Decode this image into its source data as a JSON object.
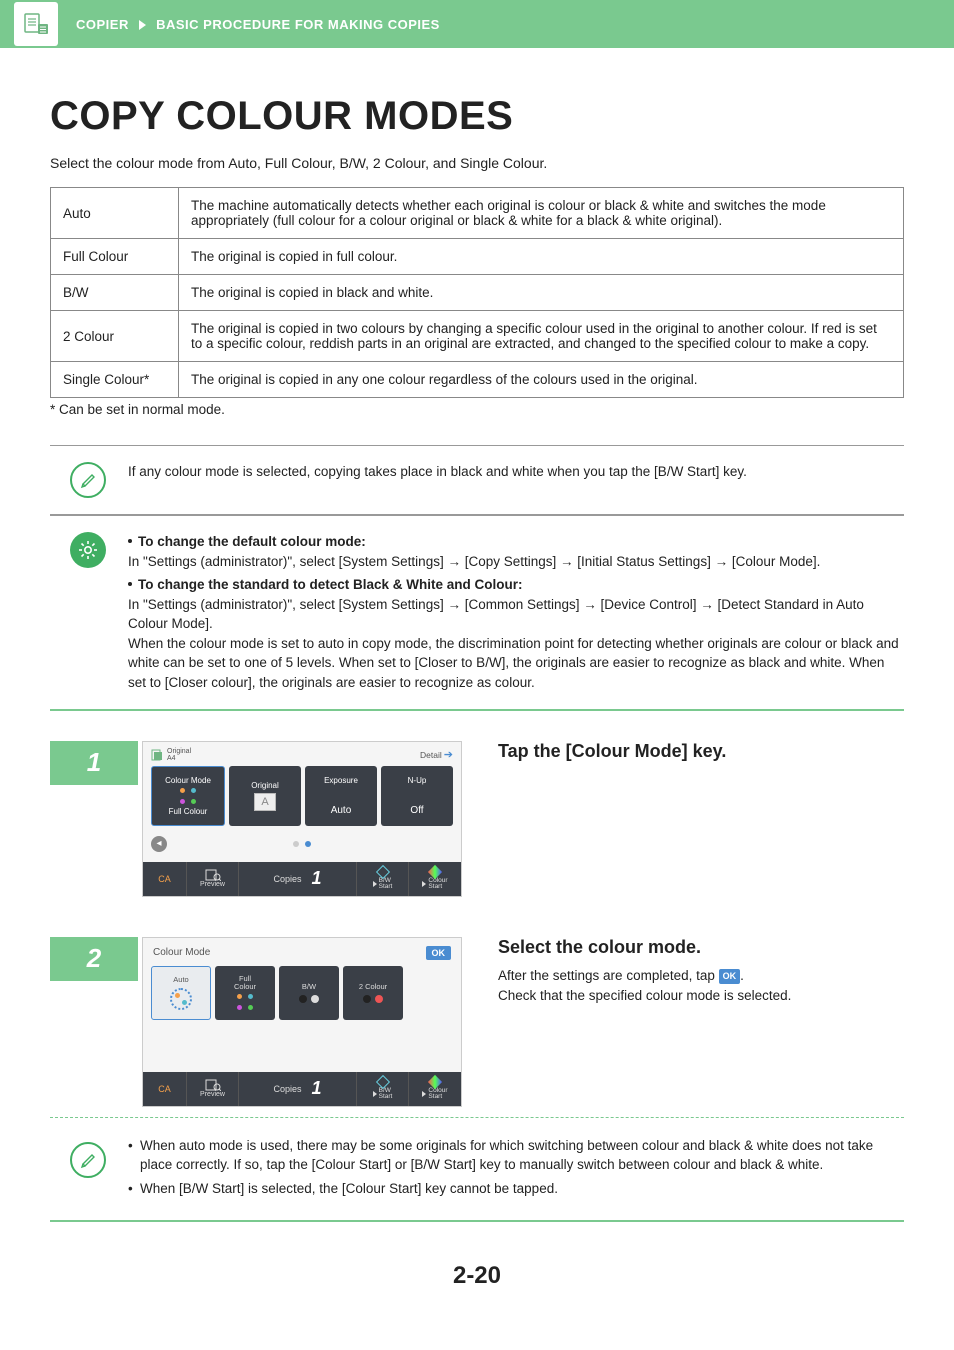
{
  "header": {
    "breadcrumb_1": "COPIER",
    "breadcrumb_2": "BASIC PROCEDURE FOR MAKING COPIES"
  },
  "title": "COPY COLOUR MODES",
  "intro": "Select the colour mode from Auto, Full Colour, B/W, 2 Colour, and Single Colour.",
  "table": {
    "rows": [
      {
        "label": "Auto",
        "desc": "The machine automatically detects whether each original is colour or black & white and switches the mode appropriately (full colour for a colour original or black & white for a black & white original)."
      },
      {
        "label": "Full Colour",
        "desc": "The original is copied in full colour."
      },
      {
        "label": "B/W",
        "desc": "The original is copied in black and white."
      },
      {
        "label": "2 Colour",
        "desc": "The original is copied in two colours by changing a specific colour used in the original to another colour. If red is set to a specific colour, reddish parts in an original are extracted, and changed to the specified colour to make a copy."
      },
      {
        "label": "Single Colour*",
        "desc": "The original is copied in any one colour regardless of the colours used in the original."
      }
    ]
  },
  "footnote": "*  Can be set in normal mode.",
  "info1": "If any colour mode is selected, copying takes place in black and white when you tap the [B/W Start] key.",
  "info2": {
    "h1": "To change the default colour mode:",
    "t1": "In \"Settings (administrator)\", select [System Settings] → [Copy Settings] → [Initial Status Settings] → [Colour Mode].",
    "h2": "To change the standard to detect Black & White and Colour:",
    "t2": "In \"Settings (administrator)\", select [System Settings] → [Common Settings] → [Device Control] → [Detect Standard in Auto Colour Mode].",
    "t3": "When the colour mode is set to auto in copy mode, the discrimination point for detecting whether originals are colour or black and white can be set to one of 5 levels. When set to [Closer to B/W], the originals are easier to recognize as black and white. When set to [Closer colour], the originals are easier to recognize as colour."
  },
  "steps": {
    "s1": {
      "num": "1",
      "title": "Tap the [Colour Mode] key.",
      "ui": {
        "original_label": "Original",
        "original_val": "A4",
        "detail": "Detail",
        "tiles": [
          {
            "top": "Colour Mode",
            "bottom": "Full Colour"
          },
          {
            "top": "Original",
            "bottom": ""
          },
          {
            "top": "Exposure",
            "bottom": "Auto"
          },
          {
            "top": "N-Up",
            "bottom": "Off"
          }
        ],
        "ca": "CA",
        "preview": "Preview",
        "copies": "Copies",
        "copies_num": "1",
        "bw_start": "B/W\nStart",
        "colour_start": "Colour\nStart"
      }
    },
    "s2": {
      "num": "2",
      "title": "Select the colour mode.",
      "text1": "After the settings are completed, tap ",
      "text2": ".",
      "text3": "Check that the specified colour mode is selected.",
      "ok_inline": "OK",
      "ui": {
        "header": "Colour Mode",
        "ok": "OK",
        "modes": [
          {
            "label": "Auto"
          },
          {
            "label": "Full\nColour"
          },
          {
            "label": "B/W"
          },
          {
            "label": "2 Colour"
          }
        ],
        "ca": "CA",
        "preview": "Preview",
        "copies": "Copies",
        "copies_num": "1",
        "bw_start": "B/W\nStart",
        "colour_start": "Colour\nStart"
      }
    }
  },
  "notes": {
    "n1": "When auto mode is used, there may be some originals for which switching between colour and black & white does not take place correctly. If so, tap the [Colour Start] or [B/W Start] key to manually switch between colour and black & white.",
    "n2": "When [B/W Start] is selected, the [Colour Start] key cannot be tapped."
  },
  "page_num": "2-20",
  "colors": {
    "green": "#7ac98f",
    "green_dark": "#3fae62",
    "dark": "#3a3f47",
    "blue": "#4a8cd1",
    "orange": "#f5a04a"
  }
}
